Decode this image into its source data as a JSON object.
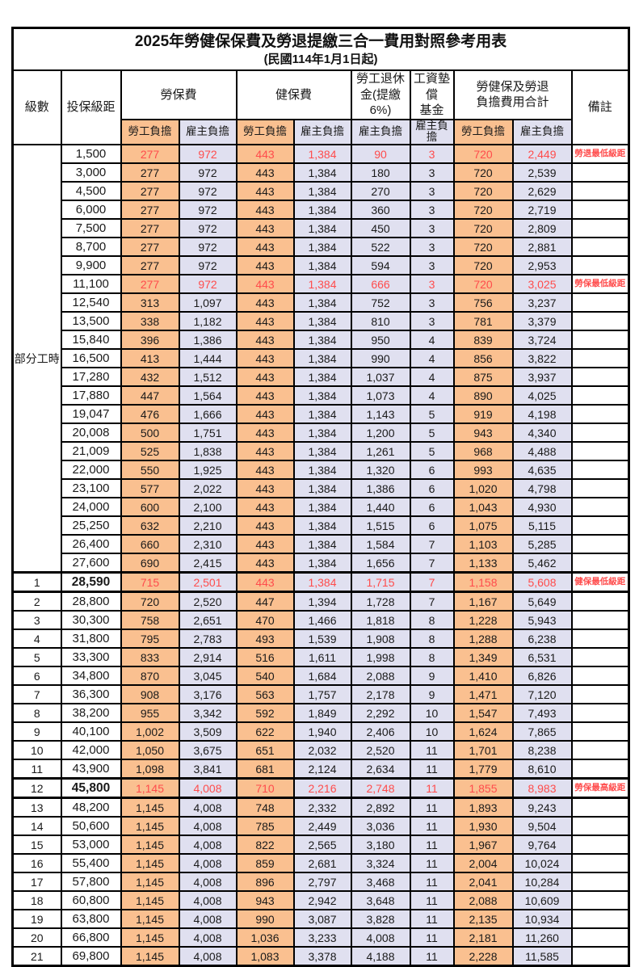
{
  "title": "2025年勞健保保費及勞退提繳三合一費用對照參考用表",
  "subtitle": "(民國114年1月1日起)",
  "colors": {
    "employee_column_orange": "#FAC090",
    "employer_column_lavender": "#E0E0F0",
    "highlight_red": "#FF4C4C",
    "grid_black": "#000000"
  },
  "table": {
    "header": {
      "level": "級數",
      "bracket": "投保級距",
      "labor_insurance": "勞保費",
      "health_insurance": "健保費",
      "pension_line1": "勞工退休",
      "pension_line2": "金(提繳6%)",
      "wage_fund_line1": "工資墊償",
      "wage_fund_line2": "基金",
      "total_line1": "勞健保及勞退",
      "total_line2": "負擔費用合計",
      "remark": "備註",
      "sub": [
        "勞工負擔",
        "雇主負擔",
        "勞工負擔",
        "雇主負擔",
        "雇主負擔",
        "雇主負擔",
        "勞工負擔",
        "雇主負擔"
      ]
    },
    "part_time_label": "部分工時",
    "part_time_rowspan": 23,
    "rows": [
      {
        "level": "",
        "bracket": "1,500",
        "fees": [
          "277",
          "972",
          "443",
          "1,384",
          "90",
          "3",
          "720",
          "2,449"
        ],
        "remark": "勞退最低級距",
        "red": true,
        "thick": false
      },
      {
        "level": "",
        "bracket": "3,000",
        "fees": [
          "277",
          "972",
          "443",
          "1,384",
          "180",
          "3",
          "720",
          "2,539"
        ],
        "remark": "",
        "red": false,
        "thick": false
      },
      {
        "level": "",
        "bracket": "4,500",
        "fees": [
          "277",
          "972",
          "443",
          "1,384",
          "270",
          "3",
          "720",
          "2,629"
        ],
        "remark": "",
        "red": false,
        "thick": false
      },
      {
        "level": "",
        "bracket": "6,000",
        "fees": [
          "277",
          "972",
          "443",
          "1,384",
          "360",
          "3",
          "720",
          "2,719"
        ],
        "remark": "",
        "red": false,
        "thick": false
      },
      {
        "level": "",
        "bracket": "7,500",
        "fees": [
          "277",
          "972",
          "443",
          "1,384",
          "450",
          "3",
          "720",
          "2,809"
        ],
        "remark": "",
        "red": false,
        "thick": false
      },
      {
        "level": "",
        "bracket": "8,700",
        "fees": [
          "277",
          "972",
          "443",
          "1,384",
          "522",
          "3",
          "720",
          "2,881"
        ],
        "remark": "",
        "red": false,
        "thick": false
      },
      {
        "level": "",
        "bracket": "9,900",
        "fees": [
          "277",
          "972",
          "443",
          "1,384",
          "594",
          "3",
          "720",
          "2,953"
        ],
        "remark": "",
        "red": false,
        "thick": false
      },
      {
        "level": "",
        "bracket": "11,100",
        "fees": [
          "277",
          "972",
          "443",
          "1,384",
          "666",
          "3",
          "720",
          "3,025"
        ],
        "remark": "勞保最低級距",
        "red": true,
        "thick": false
      },
      {
        "level": "",
        "bracket": "12,540",
        "fees": [
          "313",
          "1,097",
          "443",
          "1,384",
          "752",
          "3",
          "756",
          "3,237"
        ],
        "remark": "",
        "red": false,
        "thick": false
      },
      {
        "level": "",
        "bracket": "13,500",
        "fees": [
          "338",
          "1,182",
          "443",
          "1,384",
          "810",
          "3",
          "781",
          "3,379"
        ],
        "remark": "",
        "red": false,
        "thick": false
      },
      {
        "level": "",
        "bracket": "15,840",
        "fees": [
          "396",
          "1,386",
          "443",
          "1,384",
          "950",
          "4",
          "839",
          "3,724"
        ],
        "remark": "",
        "red": false,
        "thick": false
      },
      {
        "level": "",
        "bracket": "16,500",
        "fees": [
          "413",
          "1,444",
          "443",
          "1,384",
          "990",
          "4",
          "856",
          "3,822"
        ],
        "remark": "",
        "red": false,
        "thick": false
      },
      {
        "level": "",
        "bracket": "17,280",
        "fees": [
          "432",
          "1,512",
          "443",
          "1,384",
          "1,037",
          "4",
          "875",
          "3,937"
        ],
        "remark": "",
        "red": false,
        "thick": false
      },
      {
        "level": "",
        "bracket": "17,880",
        "fees": [
          "447",
          "1,564",
          "443",
          "1,384",
          "1,073",
          "4",
          "890",
          "4,025"
        ],
        "remark": "",
        "red": false,
        "thick": false
      },
      {
        "level": "",
        "bracket": "19,047",
        "fees": [
          "476",
          "1,666",
          "443",
          "1,384",
          "1,143",
          "5",
          "919",
          "4,198"
        ],
        "remark": "",
        "red": false,
        "thick": false
      },
      {
        "level": "",
        "bracket": "20,008",
        "fees": [
          "500",
          "1,751",
          "443",
          "1,384",
          "1,200",
          "5",
          "943",
          "4,340"
        ],
        "remark": "",
        "red": false,
        "thick": false
      },
      {
        "level": "",
        "bracket": "21,009",
        "fees": [
          "525",
          "1,838",
          "443",
          "1,384",
          "1,261",
          "5",
          "968",
          "4,488"
        ],
        "remark": "",
        "red": false,
        "thick": false
      },
      {
        "level": "",
        "bracket": "22,000",
        "fees": [
          "550",
          "1,925",
          "443",
          "1,384",
          "1,320",
          "6",
          "993",
          "4,635"
        ],
        "remark": "",
        "red": false,
        "thick": false
      },
      {
        "level": "",
        "bracket": "23,100",
        "fees": [
          "577",
          "2,022",
          "443",
          "1,384",
          "1,386",
          "6",
          "1,020",
          "4,798"
        ],
        "remark": "",
        "red": false,
        "thick": false
      },
      {
        "level": "",
        "bracket": "24,000",
        "fees": [
          "600",
          "2,100",
          "443",
          "1,384",
          "1,440",
          "6",
          "1,043",
          "4,930"
        ],
        "remark": "",
        "red": false,
        "thick": false
      },
      {
        "level": "",
        "bracket": "25,250",
        "fees": [
          "632",
          "2,210",
          "443",
          "1,384",
          "1,515",
          "6",
          "1,075",
          "5,115"
        ],
        "remark": "",
        "red": false,
        "thick": false
      },
      {
        "level": "",
        "bracket": "26,400",
        "fees": [
          "660",
          "2,310",
          "443",
          "1,384",
          "1,584",
          "7",
          "1,103",
          "5,285"
        ],
        "remark": "",
        "red": false,
        "thick": false
      },
      {
        "level": "",
        "bracket": "27,600",
        "fees": [
          "690",
          "2,415",
          "443",
          "1,384",
          "1,656",
          "7",
          "1,133",
          "5,462"
        ],
        "remark": "",
        "red": false,
        "thick": false
      },
      {
        "level": "1",
        "bracket": "28,590",
        "fees": [
          "715",
          "2,501",
          "443",
          "1,384",
          "1,715",
          "7",
          "1,158",
          "5,608"
        ],
        "remark": "健保最低級距",
        "red": true,
        "thick": true
      },
      {
        "level": "2",
        "bracket": "28,800",
        "fees": [
          "720",
          "2,520",
          "447",
          "1,394",
          "1,728",
          "7",
          "1,167",
          "5,649"
        ],
        "remark": "",
        "red": false,
        "thick": false
      },
      {
        "level": "3",
        "bracket": "30,300",
        "fees": [
          "758",
          "2,651",
          "470",
          "1,466",
          "1,818",
          "8",
          "1,228",
          "5,943"
        ],
        "remark": "",
        "red": false,
        "thick": false
      },
      {
        "level": "4",
        "bracket": "31,800",
        "fees": [
          "795",
          "2,783",
          "493",
          "1,539",
          "1,908",
          "8",
          "1,288",
          "6,238"
        ],
        "remark": "",
        "red": false,
        "thick": false
      },
      {
        "level": "5",
        "bracket": "33,300",
        "fees": [
          "833",
          "2,914",
          "516",
          "1,611",
          "1,998",
          "8",
          "1,349",
          "6,531"
        ],
        "remark": "",
        "red": false,
        "thick": false
      },
      {
        "level": "6",
        "bracket": "34,800",
        "fees": [
          "870",
          "3,045",
          "540",
          "1,684",
          "2,088",
          "9",
          "1,410",
          "6,826"
        ],
        "remark": "",
        "red": false,
        "thick": false
      },
      {
        "level": "7",
        "bracket": "36,300",
        "fees": [
          "908",
          "3,176",
          "563",
          "1,757",
          "2,178",
          "9",
          "1,471",
          "7,120"
        ],
        "remark": "",
        "red": false,
        "thick": false
      },
      {
        "level": "8",
        "bracket": "38,200",
        "fees": [
          "955",
          "3,342",
          "592",
          "1,849",
          "2,292",
          "10",
          "1,547",
          "7,493"
        ],
        "remark": "",
        "red": false,
        "thick": false
      },
      {
        "level": "9",
        "bracket": "40,100",
        "fees": [
          "1,002",
          "3,509",
          "622",
          "1,940",
          "2,406",
          "10",
          "1,624",
          "7,865"
        ],
        "remark": "",
        "red": false,
        "thick": false
      },
      {
        "level": "10",
        "bracket": "42,000",
        "fees": [
          "1,050",
          "3,675",
          "651",
          "2,032",
          "2,520",
          "11",
          "1,701",
          "8,238"
        ],
        "remark": "",
        "red": false,
        "thick": false
      },
      {
        "level": "11",
        "bracket": "43,900",
        "fees": [
          "1,098",
          "3,841",
          "681",
          "2,124",
          "2,634",
          "11",
          "1,779",
          "8,610"
        ],
        "remark": "",
        "red": false,
        "thick": false
      },
      {
        "level": "12",
        "bracket": "45,800",
        "fees": [
          "1,145",
          "4,008",
          "710",
          "2,216",
          "2,748",
          "11",
          "1,855",
          "8,983"
        ],
        "remark": "勞保最高級距",
        "red": true,
        "thick": true
      },
      {
        "level": "13",
        "bracket": "48,200",
        "fees": [
          "1,145",
          "4,008",
          "748",
          "2,332",
          "2,892",
          "11",
          "1,893",
          "9,243"
        ],
        "remark": "",
        "red": false,
        "thick": false
      },
      {
        "level": "14",
        "bracket": "50,600",
        "fees": [
          "1,145",
          "4,008",
          "785",
          "2,449",
          "3,036",
          "11",
          "1,930",
          "9,504"
        ],
        "remark": "",
        "red": false,
        "thick": false
      },
      {
        "level": "15",
        "bracket": "53,000",
        "fees": [
          "1,145",
          "4,008",
          "822",
          "2,565",
          "3,180",
          "11",
          "1,967",
          "9,764"
        ],
        "remark": "",
        "red": false,
        "thick": false
      },
      {
        "level": "16",
        "bracket": "55,400",
        "fees": [
          "1,145",
          "4,008",
          "859",
          "2,681",
          "3,324",
          "11",
          "2,004",
          "10,024"
        ],
        "remark": "",
        "red": false,
        "thick": false
      },
      {
        "level": "17",
        "bracket": "57,800",
        "fees": [
          "1,145",
          "4,008",
          "896",
          "2,797",
          "3,468",
          "11",
          "2,041",
          "10,284"
        ],
        "remark": "",
        "red": false,
        "thick": false
      },
      {
        "level": "18",
        "bracket": "60,800",
        "fees": [
          "1,145",
          "4,008",
          "943",
          "2,942",
          "3,648",
          "11",
          "2,088",
          "10,609"
        ],
        "remark": "",
        "red": false,
        "thick": false
      },
      {
        "level": "19",
        "bracket": "63,800",
        "fees": [
          "1,145",
          "4,008",
          "990",
          "3,087",
          "3,828",
          "11",
          "2,135",
          "10,934"
        ],
        "remark": "",
        "red": false,
        "thick": false
      },
      {
        "level": "20",
        "bracket": "66,800",
        "fees": [
          "1,145",
          "4,008",
          "1,036",
          "3,233",
          "4,008",
          "11",
          "2,181",
          "11,260"
        ],
        "remark": "",
        "red": false,
        "thick": false
      },
      {
        "level": "21",
        "bracket": "69,800",
        "fees": [
          "1,145",
          "4,008",
          "1,083",
          "3,378",
          "4,188",
          "11",
          "2,228",
          "11,585"
        ],
        "remark": "",
        "red": false,
        "thick": false
      }
    ]
  }
}
